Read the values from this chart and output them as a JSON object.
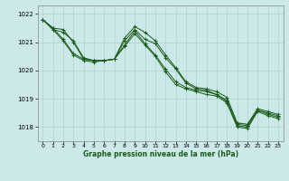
{
  "title": "Graphe pression niveau de la mer (hPa)",
  "bg_color": "#cce8e8",
  "grid_color": "#aad0d0",
  "line_color": "#1a5c1a",
  "xlim": [
    -0.5,
    23.5
  ],
  "ylim": [
    1017.5,
    1022.3
  ],
  "yticks": [
    1018,
    1019,
    1020,
    1021,
    1022
  ],
  "xticks": [
    0,
    1,
    2,
    3,
    4,
    5,
    6,
    7,
    8,
    9,
    10,
    11,
    12,
    13,
    14,
    15,
    16,
    17,
    18,
    19,
    20,
    21,
    22,
    23
  ],
  "series": [
    [
      1021.8,
      1021.5,
      1021.45,
      1021.0,
      1020.4,
      1020.35,
      1020.35,
      1020.4,
      1021.15,
      1021.55,
      1021.35,
      1021.05,
      1020.55,
      1020.1,
      1019.6,
      1019.4,
      1019.35,
      1019.25,
      1019.05,
      1018.15,
      1018.1,
      1018.65,
      1018.55,
      1018.45
    ],
    [
      1021.8,
      1021.45,
      1021.35,
      1021.05,
      1020.45,
      1020.35,
      1020.35,
      1020.4,
      1021.05,
      1021.45,
      1021.1,
      1020.95,
      1020.45,
      1020.05,
      1019.55,
      1019.35,
      1019.3,
      1019.15,
      1018.95,
      1018.1,
      1018.05,
      1018.6,
      1018.5,
      1018.4
    ],
    [
      1021.8,
      1021.5,
      1021.1,
      1020.6,
      1020.4,
      1020.35,
      1020.35,
      1020.4,
      1020.9,
      1021.4,
      1020.95,
      1020.55,
      1020.05,
      1019.6,
      1019.4,
      1019.3,
      1019.25,
      1019.15,
      1018.9,
      1018.05,
      1018.0,
      1018.6,
      1018.45,
      1018.35
    ],
    [
      1021.8,
      1021.45,
      1021.05,
      1020.55,
      1020.35,
      1020.3,
      1020.35,
      1020.4,
      1020.85,
      1021.3,
      1020.9,
      1020.5,
      1019.95,
      1019.5,
      1019.35,
      1019.25,
      1019.15,
      1019.1,
      1018.85,
      1018.0,
      1017.95,
      1018.55,
      1018.4,
      1018.3
    ]
  ]
}
